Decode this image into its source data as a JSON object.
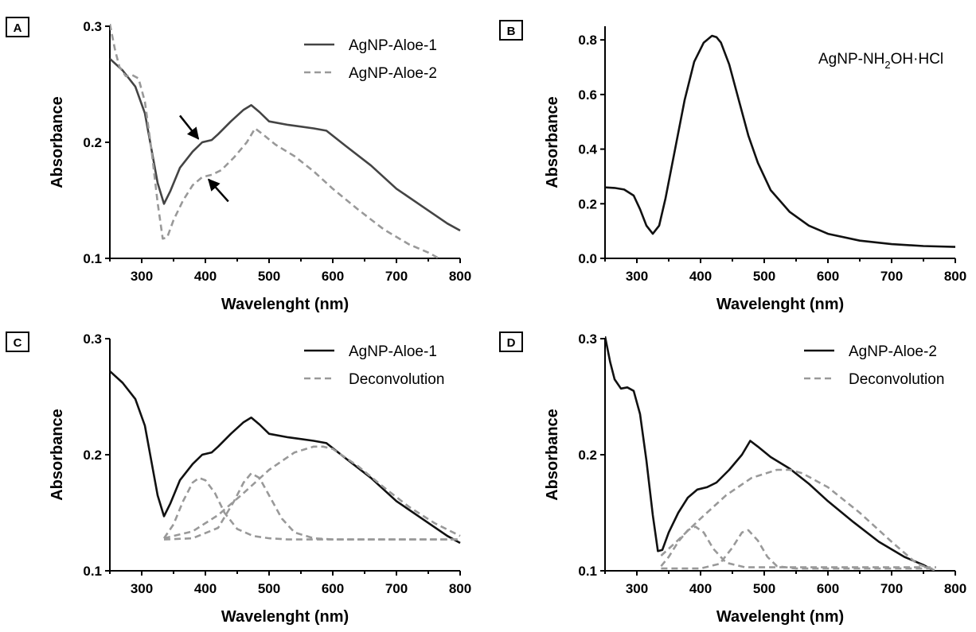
{
  "chart_data": [
    {
      "panel": "A",
      "type": "line",
      "xlabel": "Wavelenght (nm)",
      "ylabel": "Absorbance",
      "xlim": [
        250,
        800
      ],
      "ylim": [
        0.1,
        0.3
      ],
      "xticks": [
        "300",
        "400",
        "500",
        "600",
        "700",
        "800"
      ],
      "yticks": [
        "0.1",
        "0.2",
        "0.3"
      ],
      "legend_position": "top-right",
      "annotations": [
        "arrow at 395 nm (AgNP-Aloe-1)",
        "arrow at 400 nm (AgNP-Aloe-2)"
      ],
      "series": [
        {
          "name": "AgNP-Aloe-1",
          "style": "solid",
          "color": "#444444",
          "x": [
            250,
            270,
            290,
            305,
            315,
            325,
            335,
            345,
            360,
            380,
            395,
            410,
            420,
            440,
            460,
            472,
            485,
            500,
            530,
            570,
            590,
            620,
            660,
            700,
            740,
            780,
            800
          ],
          "y": [
            0.272,
            0.262,
            0.248,
            0.225,
            0.195,
            0.165,
            0.147,
            0.158,
            0.178,
            0.192,
            0.2,
            0.202,
            0.207,
            0.218,
            0.228,
            0.232,
            0.226,
            0.218,
            0.215,
            0.212,
            0.21,
            0.197,
            0.18,
            0.16,
            0.145,
            0.13,
            0.124
          ]
        },
        {
          "name": "AgNP-Aloe-2",
          "style": "dashed",
          "color": "#999999",
          "x": [
            250,
            258,
            265,
            275,
            285,
            295,
            305,
            315,
            325,
            333,
            340,
            350,
            365,
            380,
            395,
            410,
            425,
            445,
            465,
            478,
            490,
            510,
            540,
            570,
            600,
            640,
            680,
            720,
            750,
            770
          ],
          "y": [
            0.302,
            0.28,
            0.265,
            0.257,
            0.258,
            0.255,
            0.235,
            0.195,
            0.148,
            0.117,
            0.118,
            0.133,
            0.15,
            0.163,
            0.17,
            0.172,
            0.176,
            0.187,
            0.2,
            0.212,
            0.207,
            0.198,
            0.188,
            0.175,
            0.16,
            0.142,
            0.125,
            0.112,
            0.105,
            0.099
          ]
        }
      ]
    },
    {
      "panel": "B",
      "type": "line",
      "xlabel": "Wavelenght (nm)",
      "ylabel": "Absorbance",
      "xlim": [
        250,
        800
      ],
      "ylim": [
        0,
        0.85
      ],
      "xticks": [
        "300",
        "400",
        "500",
        "600",
        "700",
        "800"
      ],
      "yticks": [
        "0.0",
        "0.2",
        "0.4",
        "0.6",
        "0.8"
      ],
      "annotation": {
        "main": "AgNP-NH",
        "sub": "2",
        "rest": "OH·HCl"
      },
      "series": [
        {
          "name": "AgNP-NH2OH·HCl",
          "style": "solid",
          "color": "#111111",
          "x": [
            250,
            265,
            280,
            295,
            305,
            315,
            325,
            335,
            345,
            360,
            375,
            390,
            405,
            418,
            425,
            432,
            445,
            460,
            475,
            490,
            510,
            540,
            570,
            600,
            650,
            700,
            750,
            800
          ],
          "y": [
            0.26,
            0.258,
            0.252,
            0.23,
            0.18,
            0.12,
            0.09,
            0.12,
            0.22,
            0.4,
            0.58,
            0.72,
            0.79,
            0.815,
            0.81,
            0.79,
            0.71,
            0.58,
            0.45,
            0.35,
            0.25,
            0.17,
            0.12,
            0.09,
            0.065,
            0.052,
            0.045,
            0.042
          ]
        }
      ]
    },
    {
      "panel": "C",
      "type": "line",
      "xlabel": "Wavelenght (nm)",
      "ylabel": "Absorbance",
      "xlim": [
        250,
        800
      ],
      "ylim": [
        0.1,
        0.3
      ],
      "xticks": [
        "300",
        "400",
        "500",
        "600",
        "700",
        "800"
      ],
      "yticks": [
        "0.1",
        "0.2",
        "0.3"
      ],
      "legend_position": "top-right",
      "series": [
        {
          "name": "AgNP-Aloe-1",
          "style": "solid",
          "color": "#111111",
          "x": [
            250,
            270,
            290,
            305,
            315,
            325,
            335,
            345,
            360,
            380,
            395,
            410,
            420,
            440,
            460,
            472,
            485,
            500,
            530,
            570,
            590,
            620,
            660,
            700,
            740,
            780,
            800
          ],
          "y": [
            0.272,
            0.262,
            0.248,
            0.225,
            0.195,
            0.165,
            0.147,
            0.158,
            0.178,
            0.192,
            0.2,
            0.202,
            0.207,
            0.218,
            0.228,
            0.232,
            0.226,
            0.218,
            0.215,
            0.212,
            0.21,
            0.197,
            0.18,
            0.16,
            0.145,
            0.13,
            0.124
          ]
        },
        {
          "name": "Deconvolution",
          "style": "dashed",
          "color": "#999999",
          "x": [
            335,
            350,
            365,
            380,
            390,
            400,
            415,
            430,
            450,
            475,
            500,
            530,
            560,
            600,
            700,
            800
          ],
          "y": [
            0.128,
            0.14,
            0.16,
            0.176,
            0.18,
            0.178,
            0.167,
            0.15,
            0.136,
            0.13,
            0.128,
            0.127,
            0.127,
            0.127,
            0.127,
            0.127
          ]
        },
        {
          "name": "Deconvolution",
          "style": "dashed",
          "color": "#999999",
          "x": [
            335,
            380,
            420,
            445,
            460,
            472,
            485,
            500,
            520,
            540,
            570,
            600,
            700,
            800
          ],
          "y": [
            0.127,
            0.128,
            0.137,
            0.16,
            0.176,
            0.184,
            0.18,
            0.165,
            0.145,
            0.133,
            0.128,
            0.127,
            0.127,
            0.127
          ]
        },
        {
          "name": "Deconvolution",
          "style": "dashed",
          "color": "#999999",
          "x": [
            335,
            380,
            420,
            460,
            500,
            540,
            570,
            585,
            600,
            640,
            680,
            720,
            760,
            800
          ],
          "y": [
            0.128,
            0.134,
            0.148,
            0.167,
            0.187,
            0.202,
            0.207,
            0.207,
            0.205,
            0.19,
            0.172,
            0.155,
            0.141,
            0.13
          ]
        }
      ]
    },
    {
      "panel": "D",
      "type": "line",
      "xlabel": "Wavelenght (nm)",
      "ylabel": "Absorbance",
      "xlim": [
        250,
        800
      ],
      "ylim": [
        0.1,
        0.3
      ],
      "xticks": [
        "300",
        "400",
        "500",
        "600",
        "700",
        "800"
      ],
      "yticks": [
        "0.1",
        "0.2",
        "0.3"
      ],
      "legend_position": "top-right",
      "series": [
        {
          "name": "AgNP-Aloe-2",
          "style": "solid",
          "color": "#111111",
          "x": [
            250,
            258,
            265,
            275,
            285,
            295,
            305,
            315,
            325,
            333,
            340,
            350,
            365,
            380,
            395,
            410,
            425,
            445,
            465,
            478,
            490,
            510,
            540,
            570,
            600,
            640,
            680,
            720,
            750,
            770
          ],
          "y": [
            0.302,
            0.28,
            0.265,
            0.257,
            0.258,
            0.255,
            0.235,
            0.195,
            0.148,
            0.117,
            0.118,
            0.133,
            0.15,
            0.163,
            0.17,
            0.172,
            0.176,
            0.187,
            0.2,
            0.212,
            0.207,
            0.198,
            0.188,
            0.175,
            0.16,
            0.142,
            0.125,
            0.112,
            0.105,
            0.099
          ]
        },
        {
          "name": "Deconvolution",
          "style": "dashed",
          "color": "#999999",
          "x": [
            338,
            350,
            365,
            380,
            392,
            405,
            420,
            440,
            470,
            520,
            560,
            600,
            700,
            770
          ],
          "y": [
            0.104,
            0.112,
            0.125,
            0.135,
            0.138,
            0.133,
            0.119,
            0.107,
            0.103,
            0.103,
            0.103,
            0.103,
            0.103,
            0.103
          ]
        },
        {
          "name": "Deconvolution",
          "style": "dashed",
          "color": "#999999",
          "x": [
            338,
            400,
            430,
            450,
            465,
            475,
            490,
            505,
            520,
            550,
            600,
            700,
            770
          ],
          "y": [
            0.102,
            0.102,
            0.106,
            0.12,
            0.133,
            0.135,
            0.126,
            0.112,
            0.104,
            0.102,
            0.102,
            0.102,
            0.102
          ]
        },
        {
          "name": "Deconvolution",
          "style": "dashed",
          "color": "#999999",
          "x": [
            338,
            360,
            400,
            440,
            480,
            520,
            540,
            560,
            600,
            650,
            700,
            740,
            770
          ],
          "y": [
            0.113,
            0.124,
            0.145,
            0.165,
            0.18,
            0.187,
            0.187,
            0.184,
            0.172,
            0.15,
            0.125,
            0.106,
            0.1
          ]
        }
      ]
    }
  ]
}
